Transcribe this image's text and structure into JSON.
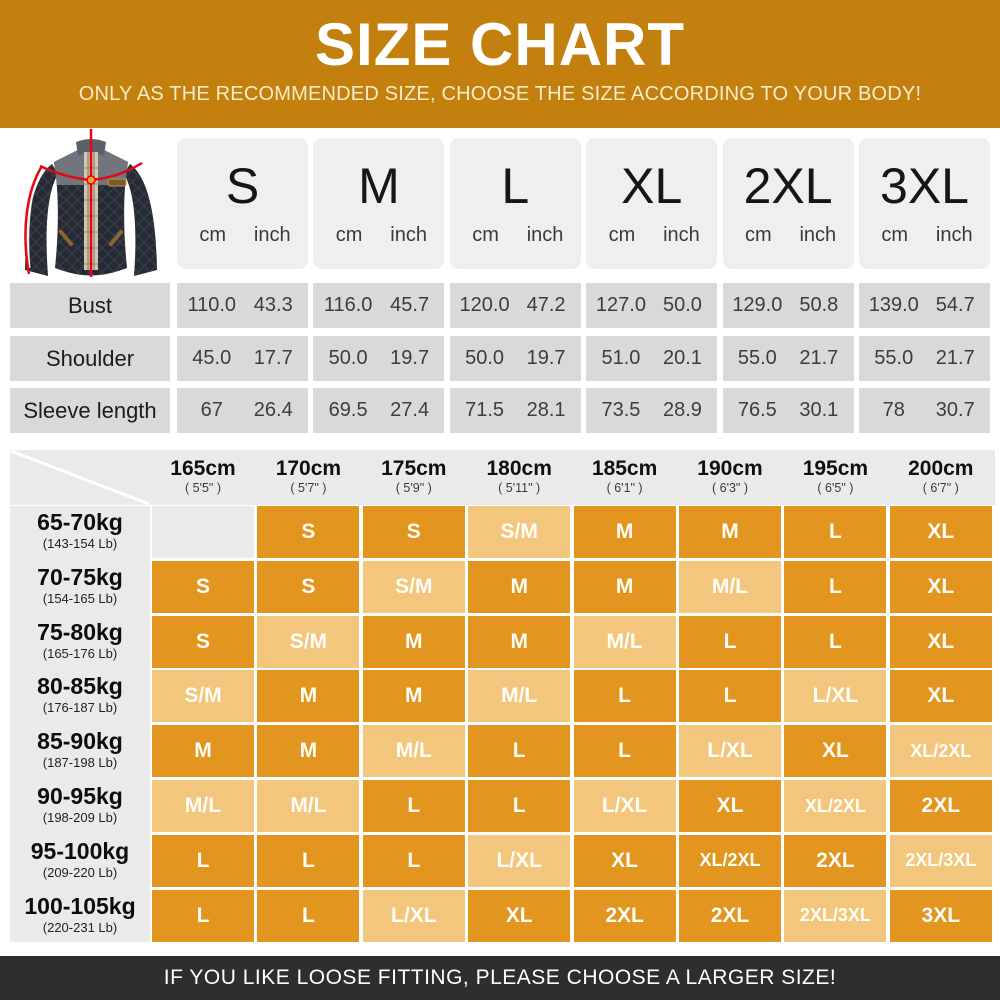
{
  "header": {
    "title": "SIZE CHART",
    "subtitle": "ONLY AS THE RECOMMENDED SIZE, CHOOSE THE SIZE ACCORDING TO YOUR BODY!"
  },
  "size_table": {
    "sizes": [
      "S",
      "M",
      "L",
      "XL",
      "2XL",
      "3XL"
    ],
    "units": [
      "cm",
      "inch"
    ],
    "rows": [
      {
        "label": "Bust",
        "values": [
          [
            "110.0",
            "43.3"
          ],
          [
            "116.0",
            "45.7"
          ],
          [
            "120.0",
            "47.2"
          ],
          [
            "127.0",
            "50.0"
          ],
          [
            "129.0",
            "50.8"
          ],
          [
            "139.0",
            "54.7"
          ]
        ]
      },
      {
        "label": "Shoulder",
        "values": [
          [
            "45.0",
            "17.7"
          ],
          [
            "50.0",
            "19.7"
          ],
          [
            "50.0",
            "19.7"
          ],
          [
            "51.0",
            "20.1"
          ],
          [
            "55.0",
            "21.7"
          ],
          [
            "55.0",
            "21.7"
          ]
        ]
      },
      {
        "label": "Sleeve length",
        "values": [
          [
            "67",
            "26.4"
          ],
          [
            "69.5",
            "27.4"
          ],
          [
            "71.5",
            "28.1"
          ],
          [
            "73.5",
            "28.9"
          ],
          [
            "76.5",
            "30.1"
          ],
          [
            "78",
            "30.7"
          ]
        ]
      }
    ]
  },
  "fit_matrix": {
    "heights": [
      [
        "165cm",
        "( 5'5\" )"
      ],
      [
        "170cm",
        "( 5'7\" )"
      ],
      [
        "175cm",
        "( 5'9\" )"
      ],
      [
        "180cm",
        "( 5'11\" )"
      ],
      [
        "185cm",
        "( 6'1\" )"
      ],
      [
        "190cm",
        "( 6'3\" )"
      ],
      [
        "195cm",
        "( 6'5\" )"
      ],
      [
        "200cm",
        "( 6'7\" )"
      ]
    ],
    "weights": [
      [
        "65-70kg",
        "(143-154 Lb)"
      ],
      [
        "70-75kg",
        "(154-165 Lb)"
      ],
      [
        "75-80kg",
        "(165-176 Lb)"
      ],
      [
        "80-85kg",
        "(176-187 Lb)"
      ],
      [
        "85-90kg",
        "(187-198 Lb)"
      ],
      [
        "90-95kg",
        "(198-209 Lb)"
      ],
      [
        "95-100kg",
        "(209-220 Lb)"
      ],
      [
        "100-105kg",
        "(220-231 Lb)"
      ]
    ],
    "cells": [
      [
        [
          "",
          "e"
        ],
        [
          "S",
          "d"
        ],
        [
          "S",
          "d"
        ],
        [
          "S/M",
          "l"
        ],
        [
          "M",
          "d"
        ],
        [
          "M",
          "d"
        ],
        [
          "L",
          "d"
        ],
        [
          "XL",
          "d"
        ]
      ],
      [
        [
          "S",
          "d"
        ],
        [
          "S",
          "d"
        ],
        [
          "S/M",
          "l"
        ],
        [
          "M",
          "d"
        ],
        [
          "M",
          "d"
        ],
        [
          "M/L",
          "l"
        ],
        [
          "L",
          "d"
        ],
        [
          "XL",
          "d"
        ]
      ],
      [
        [
          "S",
          "d"
        ],
        [
          "S/M",
          "l"
        ],
        [
          "M",
          "d"
        ],
        [
          "M",
          "d"
        ],
        [
          "M/L",
          "l"
        ],
        [
          "L",
          "d"
        ],
        [
          "L",
          "d"
        ],
        [
          "XL",
          "d"
        ]
      ],
      [
        [
          "S/M",
          "l"
        ],
        [
          "M",
          "d"
        ],
        [
          "M",
          "d"
        ],
        [
          "M/L",
          "l"
        ],
        [
          "L",
          "d"
        ],
        [
          "L",
          "d"
        ],
        [
          "L/XL",
          "l"
        ],
        [
          "XL",
          "d"
        ]
      ],
      [
        [
          "M",
          "d"
        ],
        [
          "M",
          "d"
        ],
        [
          "M/L",
          "l"
        ],
        [
          "L",
          "d"
        ],
        [
          "L",
          "d"
        ],
        [
          "L/XL",
          "l"
        ],
        [
          "XL",
          "d"
        ],
        [
          "XL/2XL",
          "l"
        ]
      ],
      [
        [
          "M/L",
          "l"
        ],
        [
          "M/L",
          "l"
        ],
        [
          "L",
          "d"
        ],
        [
          "L",
          "d"
        ],
        [
          "L/XL",
          "l"
        ],
        [
          "XL",
          "d"
        ],
        [
          "XL/2XL",
          "l"
        ],
        [
          "2XL",
          "d"
        ]
      ],
      [
        [
          "L",
          "d"
        ],
        [
          "L",
          "d"
        ],
        [
          "L",
          "d"
        ],
        [
          "L/XL",
          "l"
        ],
        [
          "XL",
          "d"
        ],
        [
          "XL/2XL",
          "d"
        ],
        [
          "2XL",
          "d"
        ],
        [
          "2XL/3XL",
          "l"
        ]
      ],
      [
        [
          "L",
          "d"
        ],
        [
          "L",
          "d"
        ],
        [
          "L/XL",
          "l"
        ],
        [
          "XL",
          "d"
        ],
        [
          "2XL",
          "d"
        ],
        [
          "2XL",
          "d"
        ],
        [
          "2XL/3XL",
          "l"
        ],
        [
          "3XL",
          "d"
        ]
      ]
    ]
  },
  "footer": {
    "text": "IF YOU LIKE LOOSE FITTING, PLEASE CHOOSE A LARGER SIZE!"
  },
  "colors": {
    "header_bg": "#C4800E",
    "cell_dark": "#E2951F",
    "cell_light": "#F3C67E",
    "gray_cell": "#D9D9D9",
    "size_box_bg": "#EFEFEF",
    "matrix_bg": "#EAEAEA",
    "footer_bg": "#2E2E2E",
    "measure_line_red": "#E30613"
  }
}
